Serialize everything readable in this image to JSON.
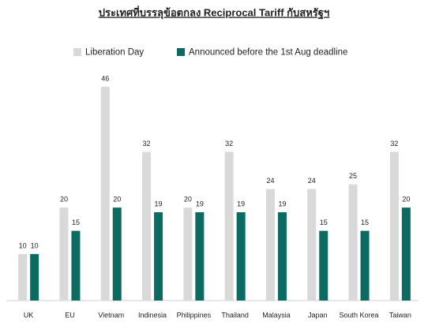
{
  "chart_data": {
    "type": "bar",
    "title": "ประเทศที่บรรลุข้อตกลง Reciprocal Tariff กับสหรัฐฯ",
    "categories": [
      "UK",
      "EU",
      "Vietnam",
      "Indinesia",
      "Philippines",
      "Thailand",
      "Malaysia",
      "Japan",
      "South Korea",
      "Taiwan"
    ],
    "series": [
      {
        "name": "Liberation Day",
        "color": "#d9d9d9",
        "values": [
          10,
          20,
          46,
          32,
          20,
          32,
          24,
          24,
          25,
          32
        ]
      },
      {
        "name": "Announced before the 1st Aug deadline",
        "color": "#0b6b63",
        "values": [
          10,
          15,
          20,
          19,
          19,
          19,
          19,
          15,
          15,
          20
        ]
      }
    ]
  }
}
